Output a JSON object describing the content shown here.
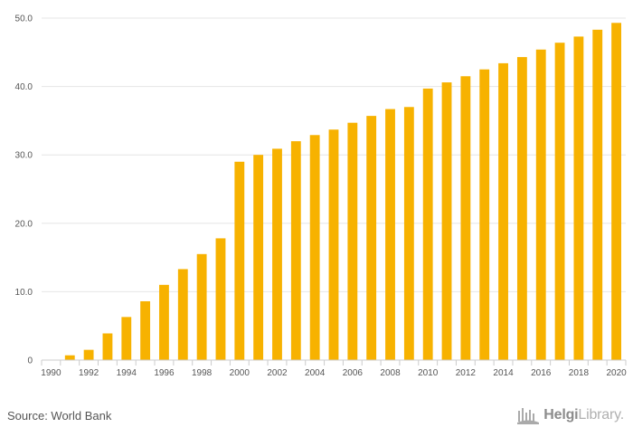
{
  "chart_data": {
    "type": "bar",
    "categories": [
      "1990",
      "1991",
      "1992",
      "1993",
      "1994",
      "1995",
      "1996",
      "1997",
      "1998",
      "1999",
      "2000",
      "2001",
      "2002",
      "2003",
      "2004",
      "2005",
      "2006",
      "2007",
      "2008",
      "2009",
      "2010",
      "2011",
      "2012",
      "2013",
      "2014",
      "2015",
      "2016",
      "2017",
      "2018",
      "2019",
      "2020"
    ],
    "values": [
      0,
      0.7,
      1.5,
      3.9,
      6.3,
      8.6,
      11.0,
      13.3,
      15.5,
      17.8,
      29.0,
      30.0,
      30.9,
      32.0,
      32.9,
      33.7,
      34.7,
      35.7,
      36.7,
      37.0,
      39.7,
      40.6,
      41.5,
      42.5,
      43.4,
      44.3,
      45.4,
      46.4,
      47.3,
      48.3,
      49.3
    ],
    "x_tick_labels": [
      "1990",
      "1992",
      "1994",
      "1996",
      "1998",
      "2000",
      "2002",
      "2004",
      "2006",
      "2008",
      "2010",
      "2012",
      "2014",
      "2016",
      "2018",
      "2020"
    ],
    "y_tick_labels": [
      "0",
      "10.0",
      "20.0",
      "30.0",
      "40.0",
      "50.0"
    ],
    "y_ticks": [
      0,
      10,
      20,
      30,
      40,
      50
    ],
    "ylim": [
      0,
      50
    ],
    "bar_color": "#f7b200",
    "grid": true,
    "title": "",
    "xlabel": "",
    "ylabel": ""
  },
  "footer": {
    "source": "Source: World Bank",
    "brand_bold": "Helgi",
    "brand_light": "Library."
  }
}
